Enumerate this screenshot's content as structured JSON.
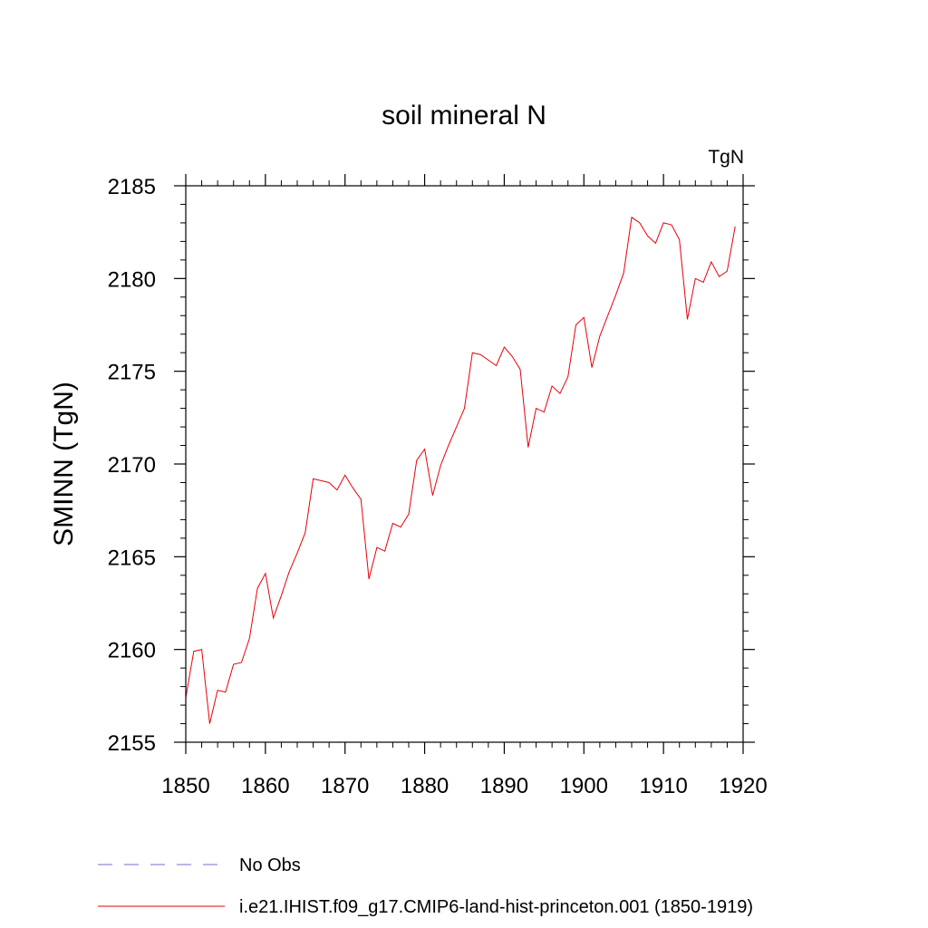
{
  "chart_data": {
    "type": "line",
    "title": "soil mineral N",
    "units_label": "TgN",
    "xlabel": "",
    "ylabel": "SMINN  (TgN)",
    "xlim": [
      1850,
      1920
    ],
    "ylim": [
      2155,
      2185
    ],
    "xticks": [
      1850,
      1860,
      1870,
      1880,
      1890,
      1900,
      1910,
      1920
    ],
    "yticks": [
      2155,
      2160,
      2165,
      2170,
      2175,
      2180,
      2185
    ],
    "grid": false,
    "legend_placement": "bottom-left",
    "series": [
      {
        "name": "i.e21.IHIST.f09_g17.CMIP6-land-hist-princeton.001 (1850-1919)",
        "color": "#e8000b",
        "dash": "solid",
        "x": [
          1850,
          1851,
          1852,
          1853,
          1854,
          1855,
          1856,
          1857,
          1858,
          1859,
          1860,
          1861,
          1862,
          1863,
          1864,
          1865,
          1866,
          1867,
          1868,
          1869,
          1870,
          1871,
          1872,
          1873,
          1874,
          1875,
          1876,
          1877,
          1878,
          1879,
          1880,
          1881,
          1882,
          1883,
          1884,
          1885,
          1886,
          1887,
          1888,
          1889,
          1890,
          1891,
          1892,
          1893,
          1894,
          1895,
          1896,
          1897,
          1898,
          1899,
          1900,
          1901,
          1902,
          1903,
          1904,
          1905,
          1906,
          1907,
          1908,
          1909,
          1910,
          1911,
          1912,
          1913,
          1914,
          1915,
          1916,
          1917,
          1918,
          1919
        ],
        "values": [
          2157.4,
          2159.9,
          2160.0,
          2156.0,
          2157.8,
          2157.7,
          2159.2,
          2159.3,
          2160.6,
          2163.3,
          2164.1,
          2161.7,
          2162.9,
          2164.2,
          2165.2,
          2166.3,
          2169.2,
          2169.1,
          2169.0,
          2168.6,
          2169.4,
          2168.7,
          2168.1,
          2163.8,
          2165.5,
          2165.3,
          2166.8,
          2166.6,
          2167.3,
          2170.2,
          2170.8,
          2168.3,
          2169.9,
          2171.0,
          2172.0,
          2173.0,
          2176.0,
          2175.9,
          2175.6,
          2175.3,
          2176.3,
          2175.8,
          2175.1,
          2170.9,
          2173.0,
          2172.8,
          2174.2,
          2173.8,
          2174.7,
          2177.5,
          2177.9,
          2175.2,
          2176.9,
          2178.0,
          2179.1,
          2180.3,
          2183.3,
          2183.0,
          2182.3,
          2181.9,
          2183.0,
          2182.9,
          2182.1,
          2177.8,
          2180.0,
          2179.8,
          2180.9,
          2180.1,
          2180.4,
          2182.8
        ]
      },
      {
        "name": "No Obs",
        "color": "#7a6bd6",
        "dash": "dashed",
        "x": [],
        "values": []
      }
    ]
  }
}
